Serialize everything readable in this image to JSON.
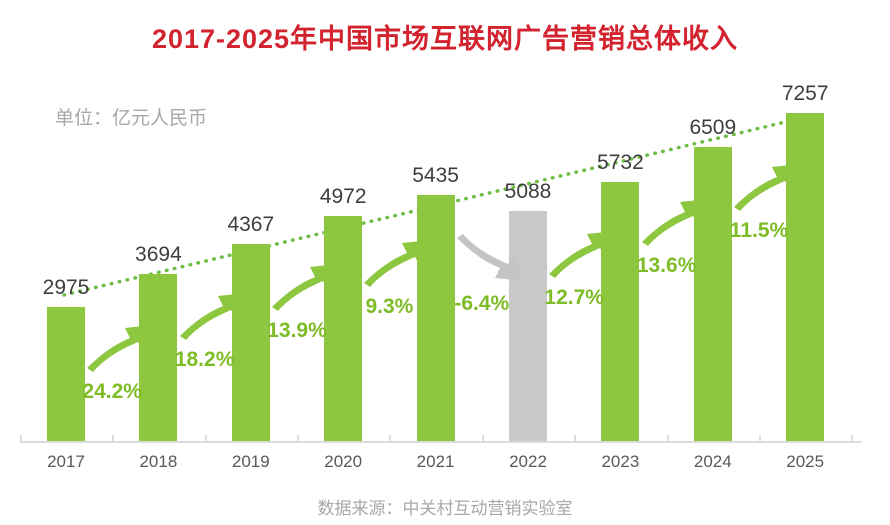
{
  "title": "2017-2025年中国市场互联网广告营销总体收入",
  "unit_label": "单位：亿元人民币",
  "source": "数据来源：中关村互动营销实验室",
  "chart_data": {
    "type": "bar",
    "title": "2017-2025年中国市场互联网广告营销总体收入",
    "unit": "亿元人民币",
    "categories": [
      "2017",
      "2018",
      "2019",
      "2020",
      "2021",
      "2022",
      "2023",
      "2024",
      "2025"
    ],
    "values": [
      2975,
      3694,
      4367,
      4972,
      5435,
      5088,
      5732,
      6509,
      7257
    ],
    "growth_labels": [
      "24.2%",
      "18.2%",
      "13.9%",
      "9.3%",
      "-6.4%",
      "12.7%",
      "13.6%",
      "11.5%"
    ],
    "growth_values": [
      24.2,
      18.2,
      13.9,
      9.3,
      -6.4,
      12.7,
      13.6,
      11.5
    ],
    "highlight_index": 5,
    "ylim": [
      0,
      7600
    ],
    "grid": false,
    "legend": "none",
    "trend_line": "dotted ascending across bar tops"
  },
  "colors": {
    "bar_green": "#8DC63F",
    "bar_gray": "#C8C8C8",
    "arrow_green": "#8DC63F",
    "arrow_gray": "#C4C4C4",
    "percent_text": "#7DBC27",
    "value_text": "#3E3E3E",
    "axis_text": "#595959",
    "title_red": "#D2232F",
    "muted_text": "#A8A8A8",
    "trend_green": "#6FBE44",
    "axis_line": "#DCDCDC"
  }
}
